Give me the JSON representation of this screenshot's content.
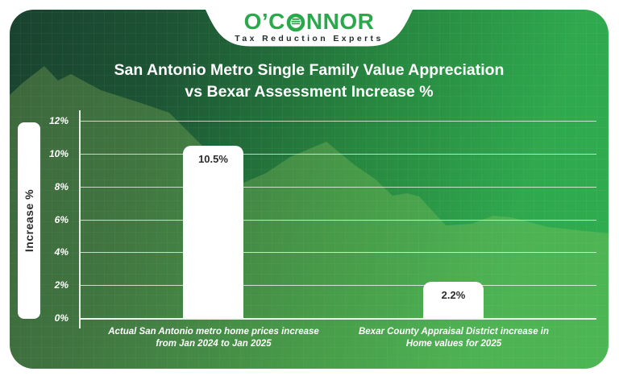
{
  "logo": {
    "name_prefix": "O’C",
    "name_suffix": "NNOR",
    "full_name": "O’CONNOR",
    "tagline": "Tax Reduction Experts"
  },
  "title": {
    "line1": "San Antonio Metro Single Family Value Appreciation",
    "line2": "vs Bexar Assessment Increase %"
  },
  "chart_data": {
    "type": "bar",
    "title": "San Antonio Metro Single Family Value Appreciation vs Bexar Assessment Increase %",
    "ylabel": "Increase %",
    "xlabel": "",
    "ylim": [
      0,
      12
    ],
    "yticks": [
      "0%",
      "2%",
      "4%",
      "6%",
      "8%",
      "10%",
      "12%"
    ],
    "ytick_values": [
      0,
      2,
      4,
      6,
      8,
      10,
      12
    ],
    "grid": true,
    "legend": false,
    "categories": [
      "Actual San Antonio metro home prices increase from Jan 2024 to Jan 2025",
      "Bexar County Appraisal District increase in Home values for 2025"
    ],
    "category_lines": [
      [
        "Actual San Antonio metro home prices increase",
        "from Jan 2024 to Jan 2025"
      ],
      [
        "Bexar County Appraisal District increase in",
        "Home values for 2025"
      ]
    ],
    "values": [
      10.5,
      2.2
    ],
    "value_labels": [
      "10.5%",
      "2.2%"
    ],
    "bar_color": "#ffffff"
  },
  "colors": {
    "gradient_dark": "#19422f",
    "gradient_bright": "#2fae4f",
    "mountain_overlay": "rgba(165,210,100,0.26)",
    "logo_green": "#2aa84c",
    "tagline_text": "#1f2d26",
    "title_text": "#ffffff",
    "bar_fill": "#ffffff",
    "bar_value_text": "#2b2b2b",
    "axis_text": "#ffffff",
    "gridline": "rgba(255,255,255,0.72)",
    "ylabel_box": "#ffffff",
    "ylabel_text": "#2b2b2b"
  }
}
